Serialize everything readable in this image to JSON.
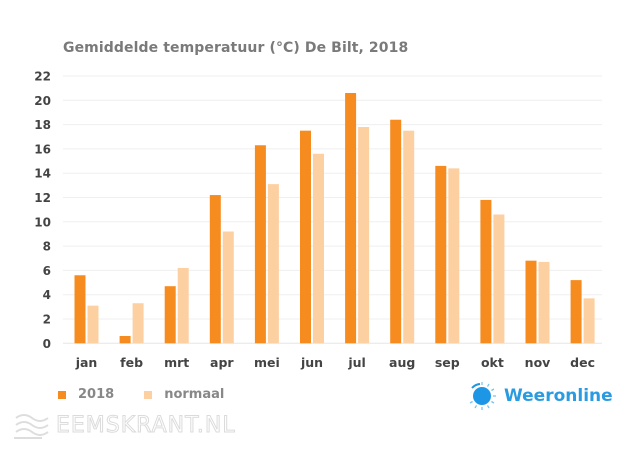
{
  "chart_data": {
    "type": "bar",
    "title": "Gemiddelde temperatuur (°C) De Bilt, 2018",
    "xlabel": "",
    "ylabel": "",
    "ylim": [
      0,
      22
    ],
    "yticks": [
      0,
      2,
      4,
      6,
      8,
      10,
      12,
      14,
      16,
      18,
      20,
      22
    ],
    "grid": true,
    "legend_position": "bottom-left",
    "categories": [
      "jan",
      "feb",
      "mrt",
      "apr",
      "mei",
      "jun",
      "jul",
      "aug",
      "sep",
      "okt",
      "nov",
      "dec"
    ],
    "series": [
      {
        "name": "2018",
        "color": "#F68B1F",
        "values": [
          5.6,
          0.6,
          4.7,
          12.2,
          16.3,
          17.5,
          20.6,
          18.4,
          14.6,
          11.8,
          6.8,
          5.2
        ]
      },
      {
        "name": "normaal",
        "color": "#FDD0A2",
        "values": [
          3.1,
          3.3,
          6.2,
          9.2,
          13.1,
          15.6,
          17.8,
          17.5,
          14.4,
          10.6,
          6.7,
          3.7
        ]
      }
    ]
  },
  "branding": {
    "logo_text": "Weeronline",
    "logo_color": "#2A9BE0",
    "watermark_text": "EEMSKRANT.NL"
  }
}
